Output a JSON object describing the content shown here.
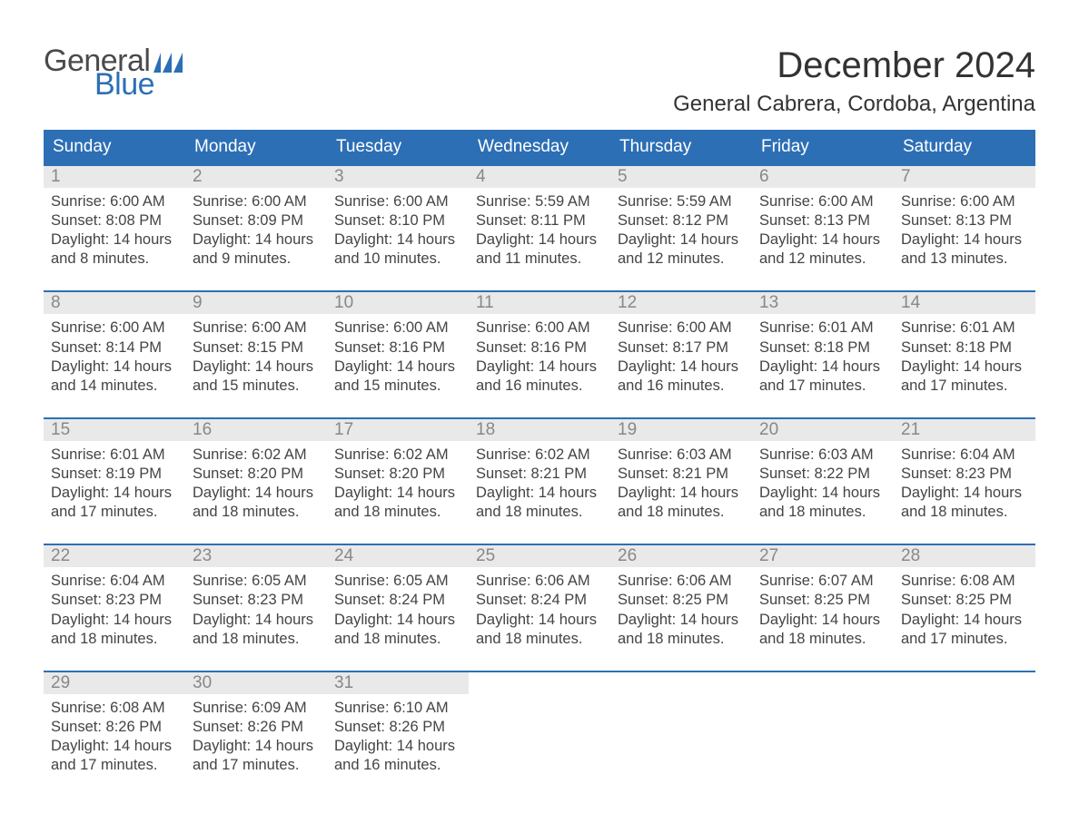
{
  "logo": {
    "word1": "General",
    "word2": "Blue",
    "color_gray": "#4a4a4a",
    "color_blue": "#2d6fb5"
  },
  "title": "December 2024",
  "location": "General Cabrera, Cordoba, Argentina",
  "colors": {
    "header_bg": "#2d6fb5",
    "header_text": "#ffffff",
    "daynum_bg": "#e9e9e9",
    "daynum_text": "#888888",
    "body_text": "#444444",
    "accent_border": "#2d6fb5",
    "page_bg": "#ffffff"
  },
  "fonts": {
    "title_size_pt": 30,
    "location_size_pt": 18,
    "dow_size_pt": 14,
    "daynum_size_pt": 14,
    "body_size_pt": 12
  },
  "days_of_week": [
    "Sunday",
    "Monday",
    "Tuesday",
    "Wednesday",
    "Thursday",
    "Friday",
    "Saturday"
  ],
  "labels": {
    "sunrise": "Sunrise",
    "sunset": "Sunset",
    "daylight": "Daylight"
  },
  "weeks": [
    [
      {
        "n": "1",
        "sunrise": "6:00 AM",
        "sunset": "8:08 PM",
        "daylight": "14 hours and 8 minutes."
      },
      {
        "n": "2",
        "sunrise": "6:00 AM",
        "sunset": "8:09 PM",
        "daylight": "14 hours and 9 minutes."
      },
      {
        "n": "3",
        "sunrise": "6:00 AM",
        "sunset": "8:10 PM",
        "daylight": "14 hours and 10 minutes."
      },
      {
        "n": "4",
        "sunrise": "5:59 AM",
        "sunset": "8:11 PM",
        "daylight": "14 hours and 11 minutes."
      },
      {
        "n": "5",
        "sunrise": "5:59 AM",
        "sunset": "8:12 PM",
        "daylight": "14 hours and 12 minutes."
      },
      {
        "n": "6",
        "sunrise": "6:00 AM",
        "sunset": "8:13 PM",
        "daylight": "14 hours and 12 minutes."
      },
      {
        "n": "7",
        "sunrise": "6:00 AM",
        "sunset": "8:13 PM",
        "daylight": "14 hours and 13 minutes."
      }
    ],
    [
      {
        "n": "8",
        "sunrise": "6:00 AM",
        "sunset": "8:14 PM",
        "daylight": "14 hours and 14 minutes."
      },
      {
        "n": "9",
        "sunrise": "6:00 AM",
        "sunset": "8:15 PM",
        "daylight": "14 hours and 15 minutes."
      },
      {
        "n": "10",
        "sunrise": "6:00 AM",
        "sunset": "8:16 PM",
        "daylight": "14 hours and 15 minutes."
      },
      {
        "n": "11",
        "sunrise": "6:00 AM",
        "sunset": "8:16 PM",
        "daylight": "14 hours and 16 minutes."
      },
      {
        "n": "12",
        "sunrise": "6:00 AM",
        "sunset": "8:17 PM",
        "daylight": "14 hours and 16 minutes."
      },
      {
        "n": "13",
        "sunrise": "6:01 AM",
        "sunset": "8:18 PM",
        "daylight": "14 hours and 17 minutes."
      },
      {
        "n": "14",
        "sunrise": "6:01 AM",
        "sunset": "8:18 PM",
        "daylight": "14 hours and 17 minutes."
      }
    ],
    [
      {
        "n": "15",
        "sunrise": "6:01 AM",
        "sunset": "8:19 PM",
        "daylight": "14 hours and 17 minutes."
      },
      {
        "n": "16",
        "sunrise": "6:02 AM",
        "sunset": "8:20 PM",
        "daylight": "14 hours and 18 minutes."
      },
      {
        "n": "17",
        "sunrise": "6:02 AM",
        "sunset": "8:20 PM",
        "daylight": "14 hours and 18 minutes."
      },
      {
        "n": "18",
        "sunrise": "6:02 AM",
        "sunset": "8:21 PM",
        "daylight": "14 hours and 18 minutes."
      },
      {
        "n": "19",
        "sunrise": "6:03 AM",
        "sunset": "8:21 PM",
        "daylight": "14 hours and 18 minutes."
      },
      {
        "n": "20",
        "sunrise": "6:03 AM",
        "sunset": "8:22 PM",
        "daylight": "14 hours and 18 minutes."
      },
      {
        "n": "21",
        "sunrise": "6:04 AM",
        "sunset": "8:23 PM",
        "daylight": "14 hours and 18 minutes."
      }
    ],
    [
      {
        "n": "22",
        "sunrise": "6:04 AM",
        "sunset": "8:23 PM",
        "daylight": "14 hours and 18 minutes."
      },
      {
        "n": "23",
        "sunrise": "6:05 AM",
        "sunset": "8:23 PM",
        "daylight": "14 hours and 18 minutes."
      },
      {
        "n": "24",
        "sunrise": "6:05 AM",
        "sunset": "8:24 PM",
        "daylight": "14 hours and 18 minutes."
      },
      {
        "n": "25",
        "sunrise": "6:06 AM",
        "sunset": "8:24 PM",
        "daylight": "14 hours and 18 minutes."
      },
      {
        "n": "26",
        "sunrise": "6:06 AM",
        "sunset": "8:25 PM",
        "daylight": "14 hours and 18 minutes."
      },
      {
        "n": "27",
        "sunrise": "6:07 AM",
        "sunset": "8:25 PM",
        "daylight": "14 hours and 18 minutes."
      },
      {
        "n": "28",
        "sunrise": "6:08 AM",
        "sunset": "8:25 PM",
        "daylight": "14 hours and 17 minutes."
      }
    ],
    [
      {
        "n": "29",
        "sunrise": "6:08 AM",
        "sunset": "8:26 PM",
        "daylight": "14 hours and 17 minutes."
      },
      {
        "n": "30",
        "sunrise": "6:09 AM",
        "sunset": "8:26 PM",
        "daylight": "14 hours and 17 minutes."
      },
      {
        "n": "31",
        "sunrise": "6:10 AM",
        "sunset": "8:26 PM",
        "daylight": "14 hours and 16 minutes."
      },
      null,
      null,
      null,
      null
    ]
  ]
}
